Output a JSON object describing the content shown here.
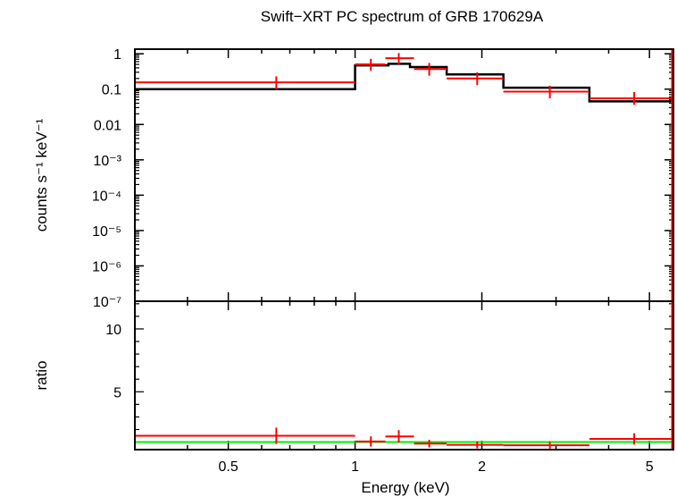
{
  "chart_data": {
    "title": "Swift−XRT PC spectrum of GRB 170629A",
    "xlabel": "Energy (keV)",
    "x_scale": "log",
    "xlim": [
      0.3,
      5.7
    ],
    "x_ticks": [
      {
        "value": 0.5,
        "label": "0.5"
      },
      {
        "value": 1,
        "label": "1"
      },
      {
        "value": 2,
        "label": "2"
      },
      {
        "value": 5,
        "label": "5"
      }
    ],
    "top_panel": {
      "type": "line",
      "ylabel": "counts s⁻¹ keV⁻¹",
      "y_scale": "log",
      "ylim": [
        1e-07,
        1.35
      ],
      "y_ticks": [
        {
          "value": 1,
          "label": "1"
        },
        {
          "value": 0.1,
          "label": "0.1"
        },
        {
          "value": 0.01,
          "label": "0.01"
        },
        {
          "value": 0.001,
          "label": "10⁻³"
        },
        {
          "value": 0.0001,
          "label": "10⁻⁴"
        },
        {
          "value": 1e-05,
          "label": "10⁻⁵"
        },
        {
          "value": 1e-06,
          "label": "10⁻⁶"
        },
        {
          "value": 1e-07,
          "label": "10⁻⁷"
        }
      ],
      "series": [
        {
          "color": "#ff0000",
          "style": "crosses",
          "points": [
            {
              "xlo": 0.3,
              "xhi": 1.0,
              "x": 0.65,
              "y": 0.155,
              "ylo": 0.1,
              "yhi": 0.23
            },
            {
              "xlo": 1.0,
              "xhi": 1.18,
              "x": 1.09,
              "y": 0.5,
              "ylo": 0.33,
              "yhi": 0.72
            },
            {
              "xlo": 1.18,
              "xhi": 1.38,
              "x": 1.27,
              "y": 0.75,
              "ylo": 0.5,
              "yhi": 1.05
            },
            {
              "xlo": 1.38,
              "xhi": 1.65,
              "x": 1.5,
              "y": 0.37,
              "ylo": 0.24,
              "yhi": 0.55
            },
            {
              "xlo": 1.65,
              "xhi": 2.25,
              "x": 1.95,
              "y": 0.2,
              "ylo": 0.13,
              "yhi": 0.3
            },
            {
              "xlo": 2.25,
              "xhi": 3.6,
              "x": 2.9,
              "y": 0.085,
              "ylo": 0.055,
              "yhi": 0.125
            },
            {
              "xlo": 3.6,
              "xhi": 5.7,
              "x": 4.6,
              "y": 0.055,
              "ylo": 0.036,
              "yhi": 0.083
            }
          ]
        },
        {
          "color": "#000000",
          "style": "step",
          "edges": [
            0.3,
            1.0,
            1.2,
            1.35,
            1.65,
            2.25,
            3.6,
            5.7
          ],
          "values": [
            0.1,
            0.47,
            0.52,
            0.42,
            0.26,
            0.11,
            0.045
          ]
        }
      ]
    },
    "bottom_panel": {
      "type": "scatter",
      "ylabel": "ratio",
      "y_scale": "linear",
      "ylim": [
        0.4,
        12.2
      ],
      "y_ticks": [
        {
          "value": 5,
          "label": "5"
        },
        {
          "value": 10,
          "label": "10"
        }
      ],
      "reference_line": {
        "y": 1,
        "color": "#00ee00"
      },
      "series": [
        {
          "color": "#ff0000",
          "style": "crosses",
          "points": [
            {
              "xlo": 0.3,
              "xhi": 1.0,
              "x": 0.65,
              "y": 1.5,
              "ylo": 0.85,
              "yhi": 2.15
            },
            {
              "xlo": 1.0,
              "xhi": 1.18,
              "x": 1.09,
              "y": 1.05,
              "ylo": 0.65,
              "yhi": 1.45
            },
            {
              "xlo": 1.18,
              "xhi": 1.38,
              "x": 1.27,
              "y": 1.45,
              "ylo": 0.95,
              "yhi": 1.95
            },
            {
              "xlo": 1.38,
              "xhi": 1.65,
              "x": 1.5,
              "y": 0.88,
              "ylo": 0.58,
              "yhi": 1.18
            },
            {
              "xlo": 1.65,
              "xhi": 2.25,
              "x": 1.95,
              "y": 0.78,
              "ylo": 0.5,
              "yhi": 1.06
            },
            {
              "xlo": 2.25,
              "xhi": 3.6,
              "x": 2.9,
              "y": 0.75,
              "ylo": 0.48,
              "yhi": 1.02
            },
            {
              "xlo": 3.6,
              "xhi": 5.7,
              "x": 4.6,
              "y": 1.25,
              "ylo": 0.8,
              "yhi": 1.7
            }
          ]
        }
      ]
    }
  }
}
